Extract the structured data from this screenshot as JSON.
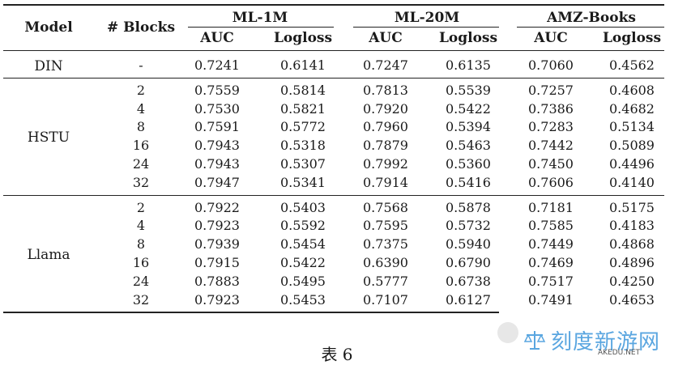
{
  "header": {
    "model": "Model",
    "blocks": "# Blocks",
    "datasets": [
      "ML-1M",
      "ML-20M",
      "AMZ-Books"
    ],
    "metrics": [
      "AUC",
      "Logloss",
      "AUC",
      "Logloss",
      "AUC",
      "Logloss"
    ]
  },
  "groups": [
    {
      "name": "DIN",
      "rows": [
        {
          "blocks": "-",
          "values": [
            "0.7241",
            "0.6141",
            "0.7247",
            "0.6135",
            "0.7060",
            "0.4562"
          ]
        }
      ]
    },
    {
      "name": "HSTU",
      "rows": [
        {
          "blocks": "2",
          "values": [
            "0.7559",
            "0.5814",
            "0.7813",
            "0.5539",
            "0.7257",
            "0.4608"
          ]
        },
        {
          "blocks": "4",
          "values": [
            "0.7530",
            "0.5821",
            "0.7920",
            "0.5422",
            "0.7386",
            "0.4682"
          ]
        },
        {
          "blocks": "8",
          "values": [
            "0.7591",
            "0.5772",
            "0.7960",
            "0.5394",
            "0.7283",
            "0.5134"
          ]
        },
        {
          "blocks": "16",
          "values": [
            "0.7943",
            "0.5318",
            "0.7879",
            "0.5463",
            "0.7442",
            "0.5089"
          ]
        },
        {
          "blocks": "24",
          "values": [
            "0.7943",
            "0.5307",
            "0.7992",
            "0.5360",
            "0.7450",
            "0.4496"
          ]
        },
        {
          "blocks": "32",
          "values": [
            "0.7947",
            "0.5341",
            "0.7914",
            "0.5416",
            "0.7606",
            "0.4140"
          ]
        }
      ]
    },
    {
      "name": "Llama",
      "rows": [
        {
          "blocks": "2",
          "values": [
            "0.7922",
            "0.5403",
            "0.7568",
            "0.5878",
            "0.7181",
            "0.5175"
          ]
        },
        {
          "blocks": "4",
          "values": [
            "0.7923",
            "0.5592",
            "0.7595",
            "0.5732",
            "0.7585",
            "0.4183"
          ]
        },
        {
          "blocks": "8",
          "values": [
            "0.7939",
            "0.5454",
            "0.7375",
            "0.5940",
            "0.7449",
            "0.4868"
          ]
        },
        {
          "blocks": "16",
          "values": [
            "0.7915",
            "0.5422",
            "0.6390",
            "0.6790",
            "0.7469",
            "0.4896"
          ]
        },
        {
          "blocks": "24",
          "values": [
            "0.7883",
            "0.5495",
            "0.5777",
            "0.6738",
            "0.7517",
            "0.4250"
          ]
        },
        {
          "blocks": "32",
          "values": [
            "0.7923",
            "0.5453",
            "0.7107",
            "0.6127",
            "0.7491",
            "0.4653"
          ]
        }
      ]
    }
  ],
  "caption": "表 6",
  "watermark": {
    "text": "刻度新游网",
    "sub": "AKEDU.NET",
    "icon": "scale-icon"
  }
}
